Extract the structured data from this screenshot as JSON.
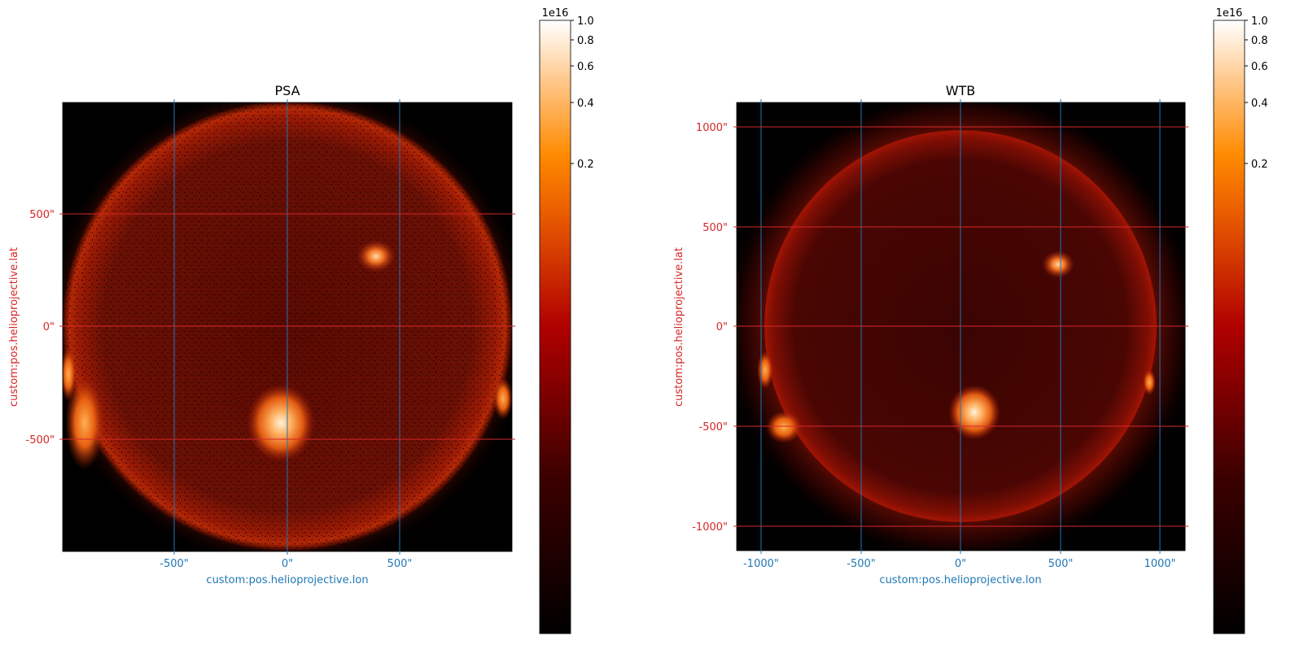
{
  "panels": [
    {
      "title": "PSA",
      "xlabel": "custom:pos.helioprojective.lon",
      "ylabel": "custom:pos.helioprojective.lat",
      "xticks": [
        "-500\"",
        "0\"",
        "500\""
      ],
      "yticks": [
        "500\"",
        "0\"",
        "-500\""
      ],
      "colorbar": {
        "exponent_label": "1e16",
        "ticks": [
          "1.0",
          "0.8",
          "0.6",
          "0.4",
          "0.2"
        ]
      }
    },
    {
      "title": "WTB",
      "xlabel": "custom:pos.helioprojective.lon",
      "ylabel": "custom:pos.helioprojective.lat",
      "xticks": [
        "-1000\"",
        "-500\"",
        "0\"",
        "500\"",
        "1000\""
      ],
      "yticks": [
        "1000\"",
        "500\"",
        "0\"",
        "-500\"",
        "-1000\""
      ],
      "colorbar": {
        "exponent_label": "1e16",
        "ticks": [
          "1.0",
          "0.8",
          "0.6",
          "0.4",
          "0.2"
        ]
      }
    }
  ],
  "colors": {
    "lon_grid": "#1f77b4",
    "lat_grid": "#d62728",
    "colormap": "sdoaia171-like black-red-orange-white"
  }
}
